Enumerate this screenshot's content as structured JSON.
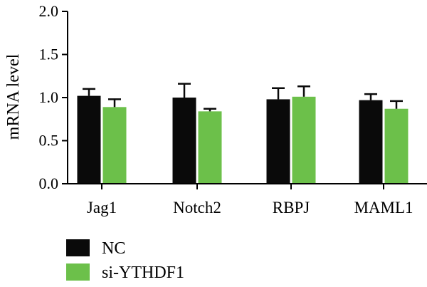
{
  "chart_data": {
    "type": "bar",
    "title": "",
    "xlabel": "",
    "ylabel": "mRNA level",
    "ylim": [
      0,
      2.0
    ],
    "yticks": [
      "0.0",
      "0.5",
      "1.0",
      "1.5",
      "2.0"
    ],
    "categories": [
      "Jag1",
      "Notch2",
      "RBPJ",
      "MAML1"
    ],
    "series": [
      {
        "name": "NC",
        "color": "#0a0a0a",
        "values": [
          1.02,
          1.0,
          0.98,
          0.97
        ],
        "errors": [
          0.08,
          0.16,
          0.13,
          0.07
        ]
      },
      {
        "name": "si-YTHDF1",
        "color": "#6cc04a",
        "values": [
          0.89,
          0.84,
          1.01,
          0.87
        ],
        "errors": [
          0.09,
          0.03,
          0.12,
          0.09
        ]
      }
    ],
    "error_bars": "upper",
    "grid": false,
    "legend_position": "bottom-left"
  }
}
